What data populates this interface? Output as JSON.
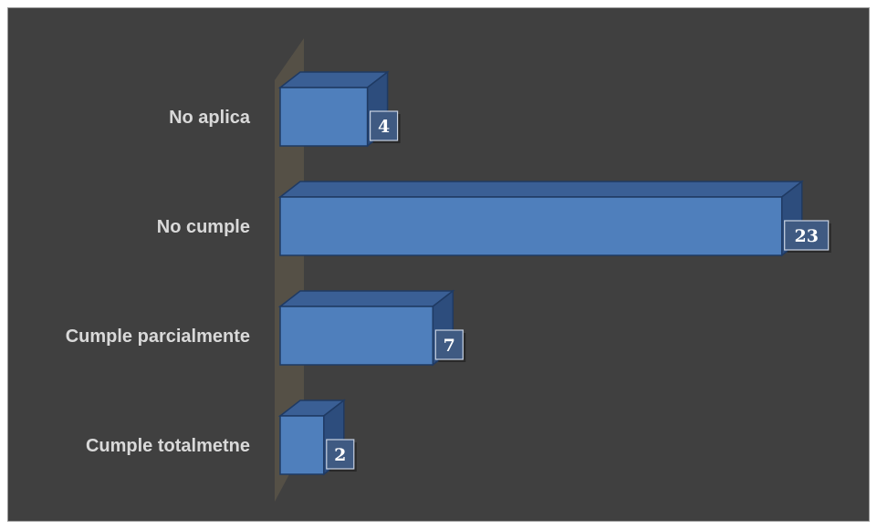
{
  "chart_data": {
    "type": "bar",
    "orientation": "horizontal",
    "style": "3d",
    "categories": [
      "No aplica",
      "No cumple",
      "Cumple parcialmente",
      "Cumple totalmetne"
    ],
    "values": [
      4,
      23,
      7,
      2
    ],
    "title": "",
    "xlabel": "",
    "ylabel": "",
    "xlim": [
      0,
      23
    ],
    "grid": false,
    "legend": "none",
    "colors": {
      "background": "#404040",
      "bar_front": "#4f7fbc",
      "bar_top": "#3a5f95",
      "bar_side": "#2d4d7d",
      "bar_edge": "#1f3a63",
      "wall": "#595448",
      "label_box": "#3f5a82",
      "label_text": "#ffffff",
      "category_text": "#d9d9d9"
    }
  }
}
